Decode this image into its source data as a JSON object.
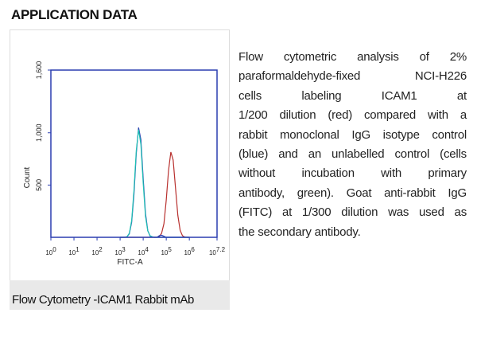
{
  "header": {
    "title": "APPLICATION DATA"
  },
  "figure_caption": "Flow Cytometry -ICAM1 Rabbit mAb",
  "chart_data": {
    "type": "line",
    "xlabel": "FITC-A",
    "ylabel": "Count",
    "xlim": [
      0,
      7.2
    ],
    "xticks": [
      {
        "value": 0,
        "label": "10",
        "sup": "0"
      },
      {
        "value": 1,
        "label": "10",
        "sup": "1"
      },
      {
        "value": 2,
        "label": "10",
        "sup": "2"
      },
      {
        "value": 3,
        "label": "10",
        "sup": "3"
      },
      {
        "value": 4,
        "label": "10",
        "sup": "4"
      },
      {
        "value": 5,
        "label": "10",
        "sup": "5"
      },
      {
        "value": 6,
        "label": "10",
        "sup": "6"
      },
      {
        "value": 7.2,
        "label": "10",
        "sup": "7.2"
      }
    ],
    "ylim": [
      0,
      1600
    ],
    "yticks": [
      500,
      {
        "value": 1000,
        "label": "1,000"
      },
      {
        "value": 1600,
        "label": "1,600"
      }
    ],
    "x": [
      3.0,
      3.1,
      3.2,
      3.3,
      3.4,
      3.5,
      3.6,
      3.7,
      3.8,
      3.9,
      4.0,
      4.1,
      4.2,
      4.3,
      4.4,
      4.5,
      4.6,
      4.7,
      4.8,
      4.9,
      5.0,
      5.1,
      5.2,
      5.3,
      5.4,
      5.5,
      5.6,
      5.7,
      5.8,
      5.9,
      6.0
    ],
    "series": [
      {
        "color": "#b8302e",
        "values": [
          0,
          0,
          0,
          0,
          0,
          0,
          0,
          0,
          0,
          0,
          0,
          0,
          0,
          0,
          0,
          0,
          2,
          8,
          39,
          130,
          354,
          640,
          816,
          740,
          469,
          210,
          67,
          15,
          3,
          0,
          0
        ]
      },
      {
        "color": "#2a3db0",
        "values": [
          0,
          0,
          1,
          5,
          34,
          143,
          410,
          800,
          1050,
          935,
          565,
          229,
          63,
          12,
          2,
          0,
          0,
          15,
          20,
          10,
          0,
          0,
          0,
          0,
          0,
          0,
          0,
          0,
          0,
          0,
          0
        ]
      },
      {
        "color": "#1fc3b4",
        "values": [
          0,
          0,
          0,
          6,
          40,
          160,
          450,
          830,
          1030,
          890,
          520,
          200,
          60,
          15,
          5,
          0,
          0,
          0,
          0,
          0,
          0,
          0,
          0,
          0,
          0,
          0,
          0,
          0,
          0,
          0,
          0
        ]
      }
    ]
  },
  "description": {
    "lines": [
      "Flow cytometric analysis of 2%",
      "paraformaldehyde-fixed NCI-H226",
      "cells labeling ICAM1 at",
      "1/200 dilution (red) compared with a",
      "rabbit monoclonal IgG isotype control",
      "(blue) and an unlabelled control (cells",
      "without incubation with primary",
      "antibody, green). Goat anti-rabbit IgG",
      "(FITC) at 1/300 dilution was used as",
      "the secondary antibody."
    ]
  }
}
